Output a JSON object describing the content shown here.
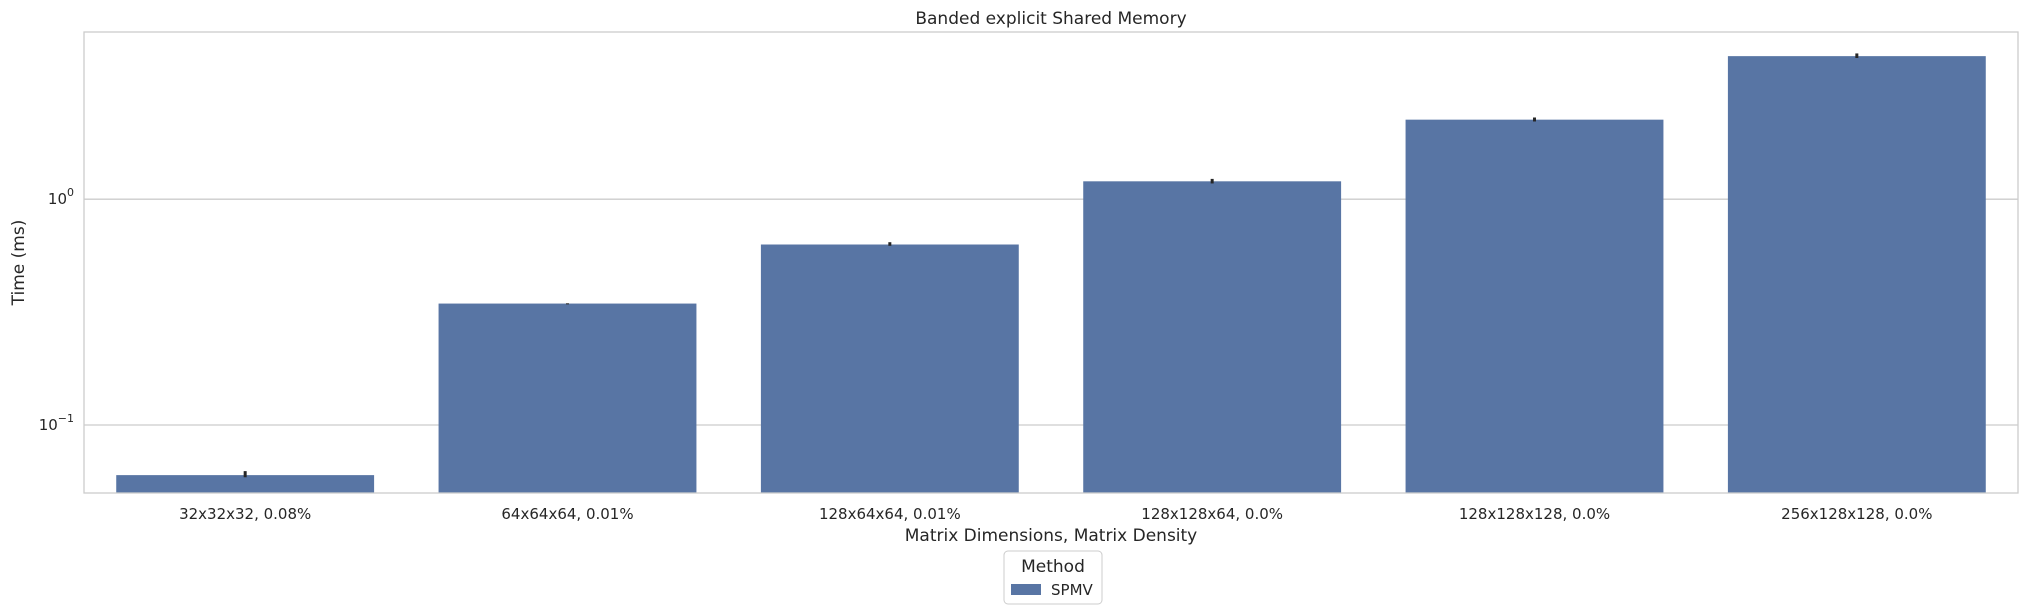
{
  "chart_data": {
    "type": "bar",
    "title": "Banded explicit Shared Memory",
    "xlabel": "Matrix Dimensions, Matrix Density",
    "ylabel": "Time (ms)",
    "yscale": "log",
    "ylim": [
      0.05,
      5.5
    ],
    "yticks": [
      {
        "value": 1,
        "base": "10",
        "exp": "0"
      },
      {
        "value": 0.1,
        "base": "10",
        "exp": "−1"
      }
    ],
    "grid": true,
    "categories": [
      "32x32x32, 0.08%",
      "64x64x64, 0.01%",
      "128x64x64, 0.01%",
      "128x128x64, 0.0%",
      "128x128x128, 0.0%",
      "256x128x128, 0.0%"
    ],
    "series": [
      {
        "name": "SPMV",
        "color": "#5875a4",
        "values": [
          0.06,
          0.345,
          0.63,
          1.2,
          2.25,
          4.3
        ],
        "error_low": [
          0.059,
          0.344,
          0.625,
          1.18,
          2.22,
          4.24
        ],
        "error_high": [
          0.0625,
          0.346,
          0.645,
          1.23,
          2.3,
          4.42
        ]
      }
    ],
    "legend": {
      "title": "Method",
      "position": "bottom-center"
    }
  }
}
